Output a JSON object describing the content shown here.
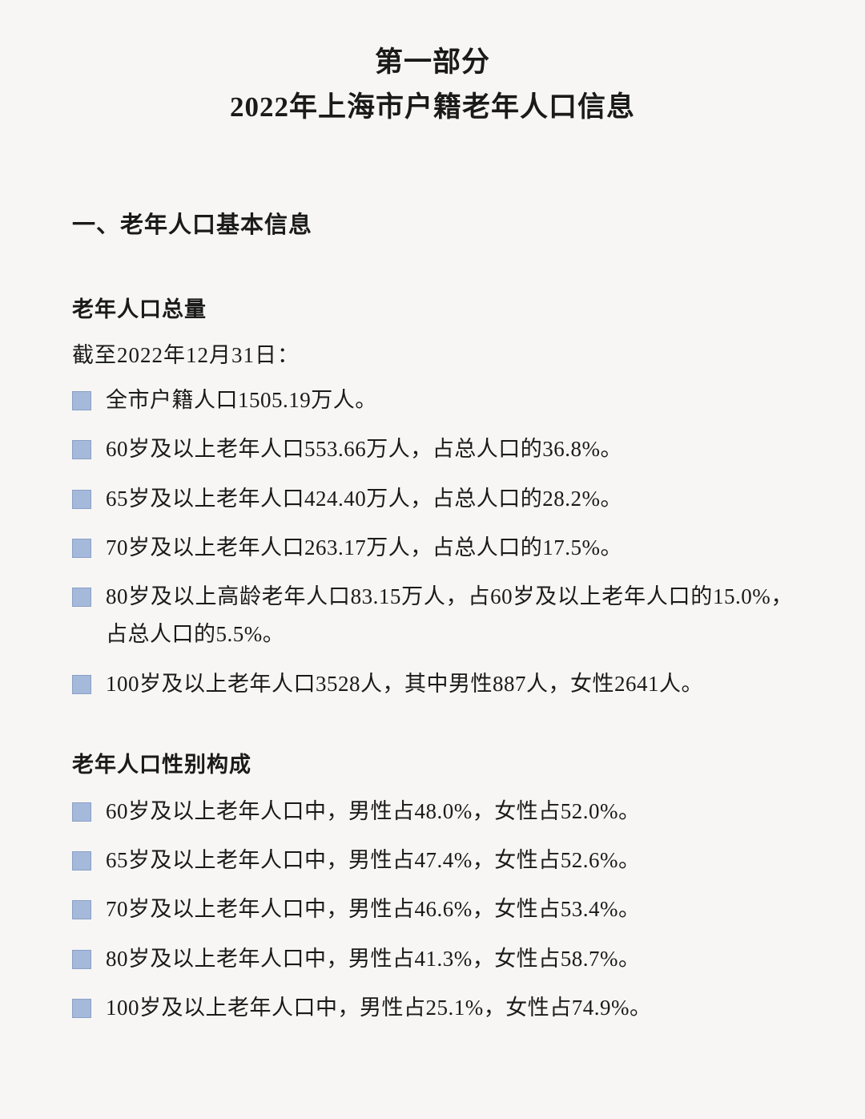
{
  "colors": {
    "background": "#f7f6f4",
    "text": "#1a1a1a",
    "bullet_fill": "#a5b9db",
    "bullet_border": "#8aa0c6"
  },
  "typography": {
    "title_fontsize": 35,
    "section_fontsize": 29,
    "sub_fontsize": 27,
    "body_fontsize": 27,
    "title_weight": 700,
    "body_weight": 400
  },
  "title": {
    "line1": "第一部分",
    "line2": "2022年上海市户籍老年人口信息"
  },
  "section1": {
    "heading": "一、老年人口基本信息"
  },
  "block1": {
    "sub_heading": "老年人口总量",
    "intro": "截至2022年12月31日：",
    "items": [
      "全市户籍人口1505.19万人。",
      "60岁及以上老年人口553.66万人，占总人口的36.8%。",
      "65岁及以上老年人口424.40万人，占总人口的28.2%。",
      "70岁及以上老年人口263.17万人，占总人口的17.5%。",
      "80岁及以上高龄老年人口83.15万人，占60岁及以上老年人口的15.0%，占总人口的5.5%。",
      "100岁及以上老年人口3528人，其中男性887人，女性2641人。"
    ]
  },
  "block2": {
    "sub_heading": "老年人口性别构成",
    "items": [
      "60岁及以上老年人口中，男性占48.0%，女性占52.0%。",
      "65岁及以上老年人口中，男性占47.4%，女性占52.6%。",
      "70岁及以上老年人口中，男性占46.6%，女性占53.4%。",
      "80岁及以上老年人口中，男性占41.3%，女性占58.7%。",
      "100岁及以上老年人口中，男性占25.1%，女性占74.9%。"
    ]
  }
}
